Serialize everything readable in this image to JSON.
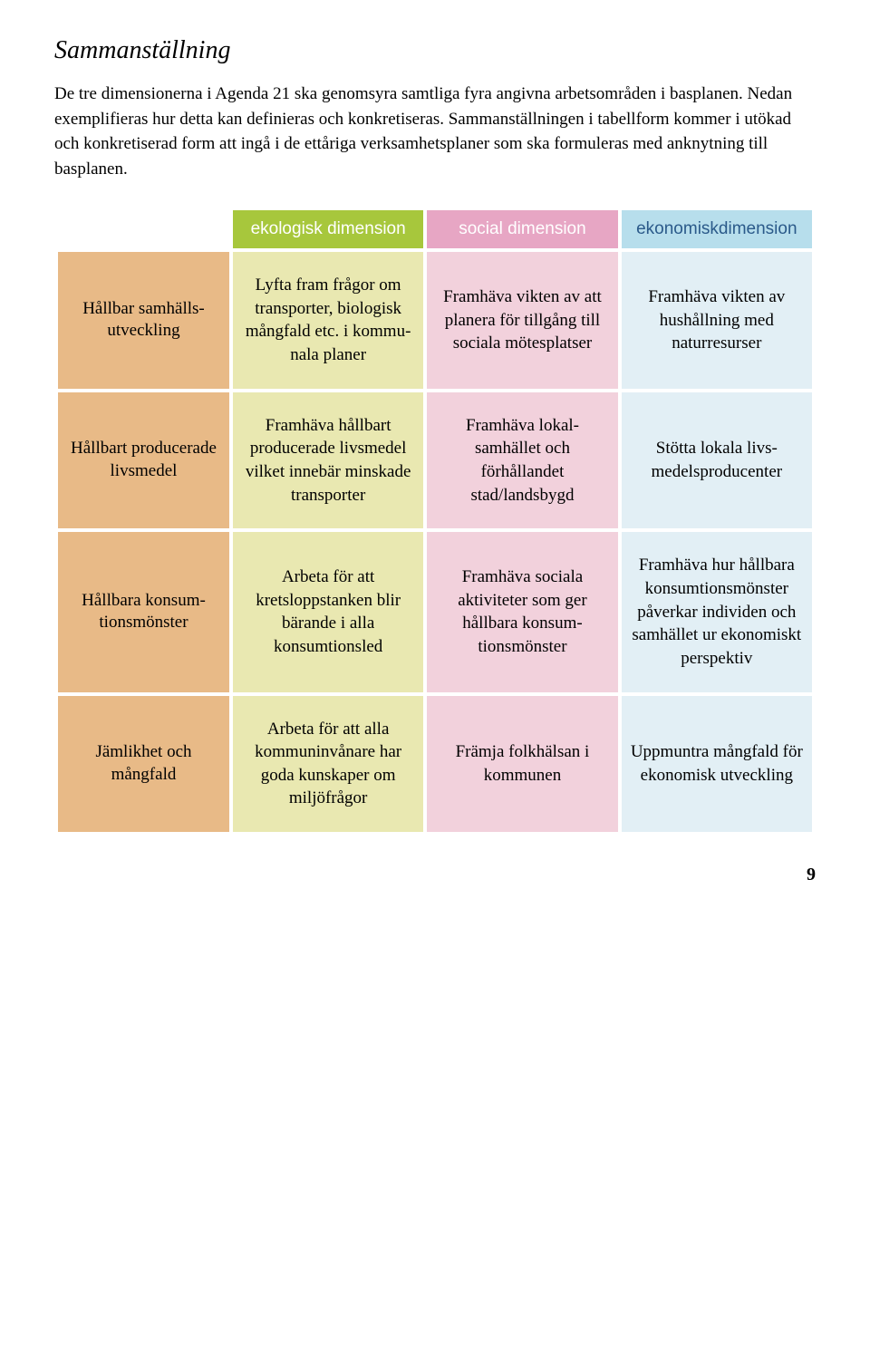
{
  "title": "Sammanställning",
  "intro": "De tre dimensionerna i Agenda 21 ska genomsyra samtliga fyra angivna arbetsom­råden i basplanen. Nedan exemplifieras hur detta kan definieras och konkretiseras. Sammanställningen i tabellform kommer i utökad och konkretiserad form att ingå i de ettåriga verksamhetsplaner som ska formuleras med anknytning till basplanen.",
  "table": {
    "columns": [
      {
        "label": "ekologisk dimension",
        "header_bg": "#a7c73c",
        "header_text": "#ffffff",
        "body_bg": "#e9e8b1"
      },
      {
        "label": "social dimension",
        "header_bg": "#e7a6c4",
        "header_text": "#ffffff",
        "body_bg": "#f2d1dc"
      },
      {
        "label": "ekonomiskdimension",
        "header_bg": "#b7deec",
        "header_text": "#2b5a8a",
        "body_bg": "#e2eff5"
      }
    ],
    "row_header_bg": "#e8ba87",
    "rows": [
      {
        "label": "Hållbar samhälls­utveckling",
        "cells": [
          "Lyfta fram frågor om transporter, biologisk mång­fald etc. i kommu­nala planer",
          "Framhäva vikten av att planera för tillgång till sociala mötesplatser",
          "Framhäva vikten av hushållning med naturresurser"
        ]
      },
      {
        "label": "Hållbart produce­rade livsmedel",
        "cells": [
          "Framhäva håll­bart producerade livsmedel vilket innebär minskade transporter",
          "Framhäva lokal­samhället och förhållandet stad/landsbygd",
          "Stötta lokala livs­medelsproducenter"
        ]
      },
      {
        "label": "Hållbara konsum­tions­mönster",
        "cells": [
          "Arbeta för att kretsloppstanken blir bärande i alla konsumtionsled",
          "Framhäva sociala aktiviteter som ger hållbara konsum­tionsmönster",
          "Framhäva hur håll­bara konsumtions­mönster påverkar individen och sam­hället ur ekono­miskt perspektiv"
        ]
      },
      {
        "label": "Jämlikhet och mångfald",
        "cells": [
          "Arbeta för att alla kommuninvånare har goda kunska­per om miljöfrågor",
          "Främja folkhälsan i kommunen",
          "Uppmuntra mång­fald för ekonomisk utveckling"
        ]
      }
    ]
  },
  "page_number": "9"
}
